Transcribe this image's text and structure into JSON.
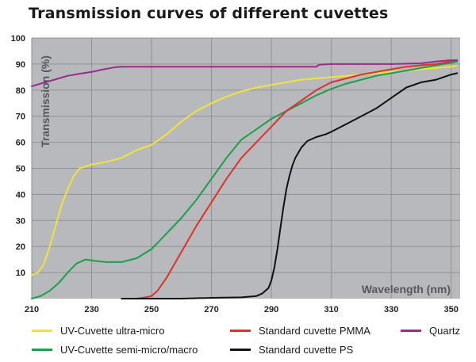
{
  "chart_data": {
    "type": "line",
    "title": "Transmission curves of different cuvettes",
    "ylabel": "Transmission (%)",
    "xlabel": "Wavelength (nm)",
    "xlim": [
      210,
      353
    ],
    "ylim": [
      0,
      100
    ],
    "x_ticks": [
      210,
      230,
      250,
      270,
      290,
      310,
      330,
      350
    ],
    "y_ticks": [
      10,
      20,
      30,
      40,
      50,
      60,
      70,
      80,
      90,
      100
    ],
    "grid": true,
    "background": "#b7b9bc",
    "series": [
      {
        "name": "UV-Cuvette ultra-micro",
        "color": "#f2e23a",
        "x": [
          210,
          212,
          214,
          216,
          218,
          220,
          222,
          224,
          226,
          230,
          235,
          240,
          245,
          250,
          255,
          260,
          265,
          270,
          275,
          280,
          285,
          290,
          295,
          300,
          305,
          310,
          315,
          320,
          325,
          330,
          335,
          340,
          345,
          350,
          352
        ],
        "y": [
          9,
          10,
          13,
          20,
          28,
          36,
          42,
          47,
          50,
          51.5,
          52.5,
          54,
          57,
          59,
          63,
          68,
          72,
          75,
          77.5,
          79.5,
          81,
          82,
          83,
          84,
          84.5,
          85,
          85.5,
          86,
          86.5,
          87,
          87.5,
          88,
          88.5,
          89,
          89.5
        ]
      },
      {
        "name": "UV-Cuvette semi-micro/macro",
        "color": "#1aa04a",
        "x": [
          210,
          213,
          216,
          219,
          222,
          225,
          228,
          231,
          235,
          240,
          245,
          250,
          255,
          260,
          265,
          270,
          275,
          280,
          285,
          290,
          295,
          300,
          305,
          310,
          315,
          320,
          325,
          330,
          335,
          340,
          345,
          350,
          352
        ],
        "y": [
          0,
          1,
          3,
          6,
          10,
          13.5,
          15,
          14.5,
          14,
          14,
          15.5,
          19,
          25,
          31,
          38,
          46,
          54,
          61,
          65,
          69,
          72,
          75,
          78,
          80.5,
          82.5,
          84,
          85.5,
          86.5,
          87.5,
          88.5,
          89.5,
          90.5,
          91
        ]
      },
      {
        "name": "Standard cuvette PMMA",
        "color": "#e0302a",
        "x": [
          245,
          248,
          250,
          252,
          255,
          258,
          261,
          265,
          270,
          275,
          280,
          285,
          290,
          295,
          300,
          305,
          310,
          315,
          320,
          325,
          330,
          335,
          340,
          345,
          350,
          352
        ],
        "y": [
          0,
          0.5,
          1,
          3,
          8,
          14,
          20,
          28,
          37,
          46,
          54,
          60,
          66,
          72,
          76,
          80,
          83,
          84.5,
          86,
          87,
          88,
          89,
          89.5,
          90,
          91,
          91.5
        ]
      },
      {
        "name": "Standard cuvette PS",
        "color": "#111111",
        "x": [
          240,
          250,
          260,
          270,
          280,
          285,
          287,
          289,
          290,
          291,
          292,
          293,
          294,
          295,
          296,
          297,
          298,
          300,
          302,
          305,
          308,
          310,
          315,
          320,
          325,
          330,
          335,
          340,
          345,
          350,
          352
        ],
        "y": [
          0,
          0,
          0,
          0.3,
          0.5,
          1,
          2,
          4,
          7,
          12,
          19,
          27,
          35,
          42,
          47,
          51,
          54,
          58,
          60.5,
          62,
          63,
          64,
          67,
          70,
          73,
          77,
          81,
          83,
          84,
          86,
          86.5
        ]
      },
      {
        "name": "Quartz",
        "color": "#9b2a8c",
        "x": [
          210,
          213,
          216,
          219,
          222,
          226,
          230,
          234,
          238,
          240,
          250,
          260,
          270,
          280,
          290,
          300,
          305,
          306,
          310,
          320,
          330,
          340,
          345,
          350,
          352
        ],
        "y": [
          81.5,
          82.5,
          83.5,
          84.5,
          85.5,
          86.3,
          87,
          88,
          88.8,
          89,
          89,
          89,
          89,
          89,
          89,
          89,
          89,
          89.8,
          90,
          90,
          90,
          90.3,
          91,
          91.5,
          91.5
        ]
      }
    ],
    "legend_order": [
      "UV-Cuvette ultra-micro",
      "Standard cuvette PMMA",
      "Quartz",
      "UV-Cuvette semi-micro/macro",
      "Standard cuvette PS"
    ]
  }
}
